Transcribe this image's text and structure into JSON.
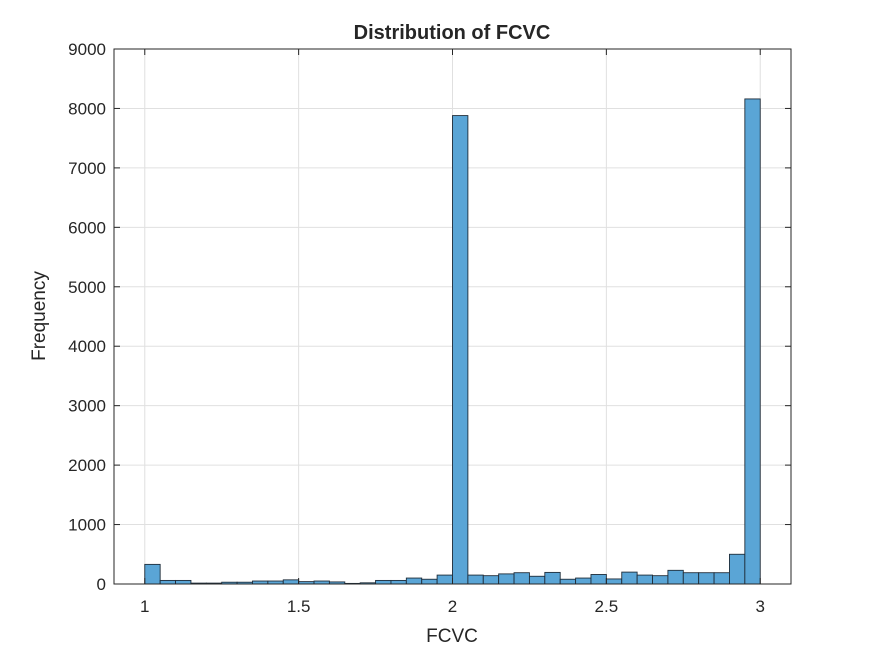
{
  "chart_data": {
    "type": "bar",
    "title": "Distribution of FCVC",
    "xlabel": "FCVC",
    "ylabel": "Frequency",
    "xlim": [
      0.9,
      3.1
    ],
    "ylim": [
      0,
      9000
    ],
    "xticks": [
      1,
      1.5,
      2,
      2.5,
      3
    ],
    "xtick_labels": [
      "1",
      "1.5",
      "2",
      "2.5",
      "3"
    ],
    "yticks": [
      0,
      1000,
      2000,
      3000,
      4000,
      5000,
      6000,
      7000,
      8000,
      9000
    ],
    "ytick_labels": [
      "0",
      "1000",
      "2000",
      "3000",
      "4000",
      "5000",
      "6000",
      "7000",
      "8000",
      "9000"
    ],
    "grid": true,
    "bin_edges": [
      1.0,
      1.05,
      1.1,
      1.15,
      1.2,
      1.25,
      1.3,
      1.35,
      1.4,
      1.45,
      1.5,
      1.55,
      1.6,
      1.65,
      1.7,
      1.75,
      1.8,
      1.85,
      1.9,
      1.95,
      2.0,
      2.05,
      2.1,
      2.15,
      2.2,
      2.25,
      2.3,
      2.35,
      2.4,
      2.45,
      2.5,
      2.55,
      2.6,
      2.65,
      2.7,
      2.75,
      2.8,
      2.85,
      2.9,
      2.95,
      3.0
    ],
    "values": [
      330,
      60,
      60,
      15,
      15,
      30,
      30,
      50,
      50,
      70,
      40,
      50,
      35,
      10,
      20,
      60,
      60,
      100,
      80,
      150,
      7880,
      150,
      140,
      170,
      190,
      130,
      195,
      80,
      100,
      160,
      85,
      200,
      150,
      140,
      230,
      190,
      190,
      190,
      500,
      8160
    ],
    "colors": {
      "bar_fill": "#5aa5d6",
      "bar_edge": "#1f2d3a",
      "grid": "#e0e0e0",
      "axis": "#262626"
    }
  }
}
